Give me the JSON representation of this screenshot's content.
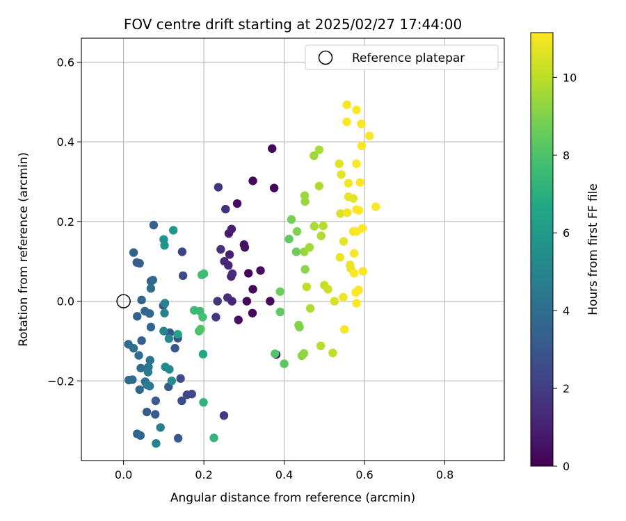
{
  "chart_data": {
    "type": "scatter",
    "title": "FOV centre drift starting at 2025/02/27 17:44:00",
    "xlabel": "Angular distance from reference (arcmin)",
    "ylabel": "Rotation from reference (arcmin)",
    "xlim": [
      -0.105,
      0.948
    ],
    "ylim": [
      -0.4,
      0.66
    ],
    "x_ticks": [
      0.0,
      0.2,
      0.4,
      0.6,
      0.8
    ],
    "x_tick_labels": [
      "0.0",
      "0.2",
      "0.4",
      "0.6",
      "0.8"
    ],
    "y_ticks": [
      -0.2,
      0.0,
      0.2,
      0.4,
      0.6
    ],
    "y_tick_labels": [
      "−0.2",
      "0.0",
      "0.2",
      "0.4",
      "0.6"
    ],
    "grid": true,
    "legend": {
      "position": "top-right",
      "entries": [
        "Reference platepar"
      ]
    },
    "reference_point": {
      "x": 0.0,
      "y": 0.0
    },
    "colorbar": {
      "label": "Hours from first FF file",
      "range": [
        0,
        11.15
      ],
      "ticks": [
        0,
        2,
        4,
        6,
        8,
        10
      ],
      "tick_labels": [
        "0",
        "2",
        "4",
        "6",
        "8",
        "10"
      ],
      "colormap": "viridis"
    },
    "points": [
      [
        0.37,
        0.383,
        0.2
      ],
      [
        0.322,
        0.302,
        0.3
      ],
      [
        0.375,
        0.284,
        0.2
      ],
      [
        0.283,
        0.245,
        0.3
      ],
      [
        0.311,
        0.07,
        0.2
      ],
      [
        0.322,
        0.03,
        0.3
      ],
      [
        0.341,
        0.077,
        0.4
      ],
      [
        0.307,
        0.0,
        0.3
      ],
      [
        0.365,
        0.0,
        0.3
      ],
      [
        0.321,
        -0.03,
        0.2
      ],
      [
        0.286,
        -0.047,
        0.5
      ],
      [
        0.38,
        -0.134,
        0.2
      ],
      [
        0.3,
        0.142,
        0.5
      ],
      [
        0.302,
        0.135,
        0.5
      ],
      [
        0.262,
        0.17,
        0.8
      ],
      [
        0.269,
        0.181,
        0.9
      ],
      [
        0.264,
        0.117,
        1.0
      ],
      [
        0.261,
        0.09,
        1.2
      ],
      [
        0.251,
        0.1,
        1.3
      ],
      [
        0.268,
        0.062,
        1.2
      ],
      [
        0.271,
        0.069,
        1.4
      ],
      [
        0.242,
        0.13,
        1.5
      ],
      [
        0.254,
        0.231,
        1.6
      ],
      [
        0.236,
        0.286,
        1.7
      ],
      [
        0.259,
        0.009,
        1.4
      ],
      [
        0.27,
        0.0,
        1.2
      ],
      [
        0.234,
        0.0,
        1.8
      ],
      [
        0.23,
        -0.04,
        1.8
      ],
      [
        0.25,
        -0.287,
        1.9
      ],
      [
        0.146,
        0.124,
        2.2
      ],
      [
        0.148,
        0.064,
        2.4
      ],
      [
        0.17,
        -0.233,
        2.5
      ],
      [
        0.158,
        -0.235,
        2.3
      ],
      [
        0.145,
        -0.25,
        2.6
      ],
      [
        0.142,
        -0.194,
        2.5
      ],
      [
        0.135,
        -0.093,
        2.7
      ],
      [
        0.135,
        -0.085,
        2.6
      ],
      [
        0.115,
        -0.079,
        2.9
      ],
      [
        0.099,
        -0.011,
        3.0
      ],
      [
        0.112,
        -0.215,
        3.1
      ],
      [
        0.08,
        -0.25,
        3.2
      ],
      [
        0.128,
        -0.118,
        3.0
      ],
      [
        0.136,
        -0.344,
        3.2
      ],
      [
        0.079,
        -0.284,
        3.2
      ],
      [
        0.058,
        -0.278,
        3.3
      ],
      [
        0.075,
        0.191,
        3.4
      ],
      [
        0.04,
        0.095,
        3.3
      ],
      [
        0.025,
        0.122,
        3.5
      ],
      [
        0.033,
        0.097,
        3.3
      ],
      [
        0.045,
        0.003,
        3.6
      ],
      [
        0.053,
        -0.025,
        3.6
      ],
      [
        0.034,
        -0.038,
        3.5
      ],
      [
        0.045,
        -0.099,
        3.4
      ],
      [
        0.065,
        -0.031,
        3.7
      ],
      [
        0.068,
        -0.065,
        3.6
      ],
      [
        0.068,
        0.05,
        3.7
      ],
      [
        0.073,
        0.053,
        3.8
      ],
      [
        0.068,
        0.032,
        3.9
      ],
      [
        0.043,
        -0.168,
        3.9
      ],
      [
        0.054,
        -0.202,
        4.1
      ],
      [
        0.013,
        -0.198,
        3.8
      ],
      [
        0.022,
        -0.197,
        3.9
      ],
      [
        0.012,
        -0.108,
        3.9
      ],
      [
        0.025,
        -0.118,
        4.0
      ],
      [
        0.038,
        -0.136,
        4.0
      ],
      [
        0.034,
        -0.333,
        3.6
      ],
      [
        0.042,
        -0.337,
        3.7
      ],
      [
        0.04,
        -0.222,
        3.8
      ],
      [
        0.066,
        -0.148,
        4.3
      ],
      [
        0.062,
        -0.165,
        4.3
      ],
      [
        0.061,
        -0.178,
        4.5
      ],
      [
        0.058,
        -0.21,
        4.5
      ],
      [
        0.065,
        -0.213,
        4.6
      ],
      [
        0.081,
        -0.357,
        4.8
      ],
      [
        0.092,
        -0.317,
        4.7
      ],
      [
        0.103,
        -0.005,
        4.9
      ],
      [
        0.102,
        -0.03,
        5.0
      ],
      [
        0.1,
        -0.075,
        5.1
      ],
      [
        0.113,
        -0.094,
        5.2
      ],
      [
        0.104,
        -0.165,
        5.3
      ],
      [
        0.114,
        -0.171,
        5.3
      ],
      [
        0.12,
        -0.2,
        5.4
      ],
      [
        0.102,
        0.14,
        5.7
      ],
      [
        0.1,
        0.155,
        5.6
      ],
      [
        0.124,
        0.178,
        5.8
      ],
      [
        0.135,
        -0.083,
        6.4
      ],
      [
        0.198,
        -0.133,
        6.6
      ],
      [
        0.199,
        -0.254,
        7.2
      ],
      [
        0.225,
        -0.343,
        7.3
      ],
      [
        0.176,
        -0.023,
        7.5
      ],
      [
        0.19,
        -0.025,
        7.6
      ],
      [
        0.197,
        -0.04,
        7.8
      ],
      [
        0.188,
        -0.075,
        7.9
      ],
      [
        0.192,
        -0.07,
        8.1
      ],
      [
        0.195,
        0.066,
        7.7
      ],
      [
        0.2,
        0.069,
        7.6
      ],
      [
        0.377,
        -0.132,
        8.1
      ],
      [
        0.4,
        -0.157,
        8.3
      ],
      [
        0.39,
        -0.027,
        8.4
      ],
      [
        0.39,
        0.024,
        8.6
      ],
      [
        0.412,
        0.156,
        8.4
      ],
      [
        0.418,
        0.205,
        8.8
      ],
      [
        0.43,
        0.124,
        8.7
      ],
      [
        0.432,
        0.175,
        9.0
      ],
      [
        0.436,
        -0.06,
        9.1
      ],
      [
        0.438,
        -0.065,
        9.0
      ],
      [
        0.444,
        -0.137,
        9.2
      ],
      [
        0.449,
        -0.131,
        9.3
      ],
      [
        0.452,
        0.08,
        9.2
      ],
      [
        0.45,
        0.124,
        9.4
      ],
      [
        0.452,
        0.25,
        9.4
      ],
      [
        0.451,
        0.265,
        9.5
      ],
      [
        0.463,
        0.135,
        9.6
      ],
      [
        0.465,
        -0.018,
        9.8
      ],
      [
        0.474,
        0.365,
        9.5
      ],
      [
        0.487,
        0.38,
        9.7
      ],
      [
        0.475,
        0.188,
        9.7
      ],
      [
        0.487,
        0.289,
        9.8
      ],
      [
        0.492,
        0.164,
        9.8
      ],
      [
        0.497,
        0.189,
        9.9
      ],
      [
        0.491,
        -0.112,
        9.9
      ],
      [
        0.456,
        0.036,
        10.1
      ],
      [
        0.5,
        0.04,
        10.2
      ],
      [
        0.509,
        0.03,
        10.3
      ],
      [
        0.521,
        -0.13,
        10.0
      ],
      [
        0.525,
        0.0,
        10.5
      ],
      [
        0.537,
        0.345,
        10.6
      ],
      [
        0.542,
        0.318,
        10.7
      ],
      [
        0.54,
        0.22,
        10.5
      ],
      [
        0.548,
        0.15,
        10.7
      ],
      [
        0.539,
        0.11,
        10.8
      ],
      [
        0.547,
        0.01,
        10.9
      ],
      [
        0.55,
        -0.071,
        11.0
      ],
      [
        0.556,
        0.493,
        11.0
      ],
      [
        0.556,
        0.45,
        11.1
      ],
      [
        0.56,
        0.296,
        11.0
      ],
      [
        0.56,
        0.262,
        10.8
      ],
      [
        0.557,
        0.222,
        11.0
      ],
      [
        0.564,
        0.091,
        10.9
      ],
      [
        0.566,
        0.082,
        10.8
      ],
      [
        0.572,
        0.258,
        10.7
      ],
      [
        0.572,
        0.175,
        11.0
      ],
      [
        0.574,
        0.12,
        11.1
      ],
      [
        0.578,
        0.022,
        11.1
      ],
      [
        0.58,
        0.48,
        11.1
      ],
      [
        0.58,
        0.345,
        11.1
      ],
      [
        0.58,
        0.175,
        11.1
      ],
      [
        0.58,
        0.23,
        11.1
      ],
      [
        0.58,
        -0.005,
        11.1
      ],
      [
        0.585,
        0.028,
        11.1
      ],
      [
        0.589,
        0.298,
        11.1
      ],
      [
        0.592,
        0.445,
        11.1
      ],
      [
        0.593,
        0.39,
        11.1
      ],
      [
        0.595,
        0.183,
        11.1
      ],
      [
        0.596,
        0.075,
        11.1
      ],
      [
        0.612,
        0.415,
        11.1
      ],
      [
        0.628,
        0.237,
        11.1
      ],
      [
        0.586,
        0.228,
        11.1
      ],
      [
        0.574,
        0.07,
        11.1
      ]
    ]
  }
}
